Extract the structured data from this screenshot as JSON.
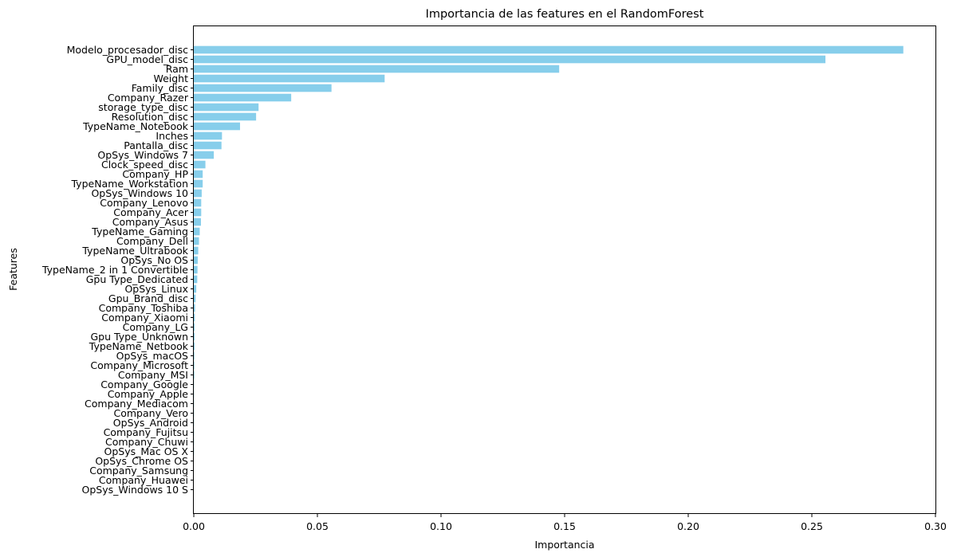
{
  "chart_data": {
    "type": "bar",
    "orientation": "horizontal",
    "title": "Importancia de las features en el RandomForest",
    "xlabel": "Importancia",
    "ylabel": "Features",
    "xlim": [
      0,
      0.3
    ],
    "xticks": [
      "0.00",
      "0.05",
      "0.10",
      "0.15",
      "0.20",
      "0.25",
      "0.30"
    ],
    "grid": false,
    "bar_color": "#87ceeb",
    "categories": [
      "Modelo_procesador_disc",
      "GPU_model_disc",
      "Ram",
      "Weight",
      "Family_disc",
      "Company_Razer",
      "storage_type_disc",
      "Resolution_disc",
      "TypeName_Notebook",
      "Inches",
      "Pantalla_disc",
      "OpSys_Windows 7",
      "Clock_speed_disc",
      "Company_HP",
      "TypeName_Workstation",
      "OpSys_Windows 10",
      "Company_Lenovo",
      "Company_Acer",
      "Company_Asus",
      "TypeName_Gaming",
      "Company_Dell",
      "TypeName_Ultrabook",
      "OpSys_No OS",
      "TypeName_2 in 1 Convertible",
      "Gpu Type_Dedicated",
      "OpSys_Linux",
      "Gpu_Brand_disc",
      "Company_Toshiba",
      "Company_Xiaomi",
      "Company_LG",
      "Gpu Type_Unknown",
      "TypeName_Netbook",
      "OpSys_macOS",
      "Company_Microsoft",
      "Company_MSI",
      "Company_Google",
      "Company_Apple",
      "Company_Mediacom",
      "Company_Vero",
      "OpSys_Android",
      "Company_Fujitsu",
      "Company_Chuwi",
      "OpSys_Mac OS X",
      "OpSys_Chrome OS",
      "Company_Samsung",
      "Company_Huawei",
      "OpSys_Windows 10 S"
    ],
    "values": [
      0.287,
      0.2555,
      0.1478,
      0.0772,
      0.0557,
      0.0394,
      0.0262,
      0.0252,
      0.0187,
      0.0114,
      0.0112,
      0.0081,
      0.0047,
      0.0036,
      0.0036,
      0.0032,
      0.003,
      0.003,
      0.0029,
      0.0024,
      0.0021,
      0.0018,
      0.0016,
      0.0015,
      0.0014,
      0.001,
      0.0007,
      0.0005,
      0.0004,
      0.0003,
      0.0003,
      0.0003,
      0.0002,
      0.0002,
      0.0002,
      0.0001,
      0.0001,
      0.0001,
      0.0001,
      0.0001,
      0.0001,
      0.0001,
      0.0001,
      0.0,
      0.0,
      0.0,
      0.0
    ]
  }
}
